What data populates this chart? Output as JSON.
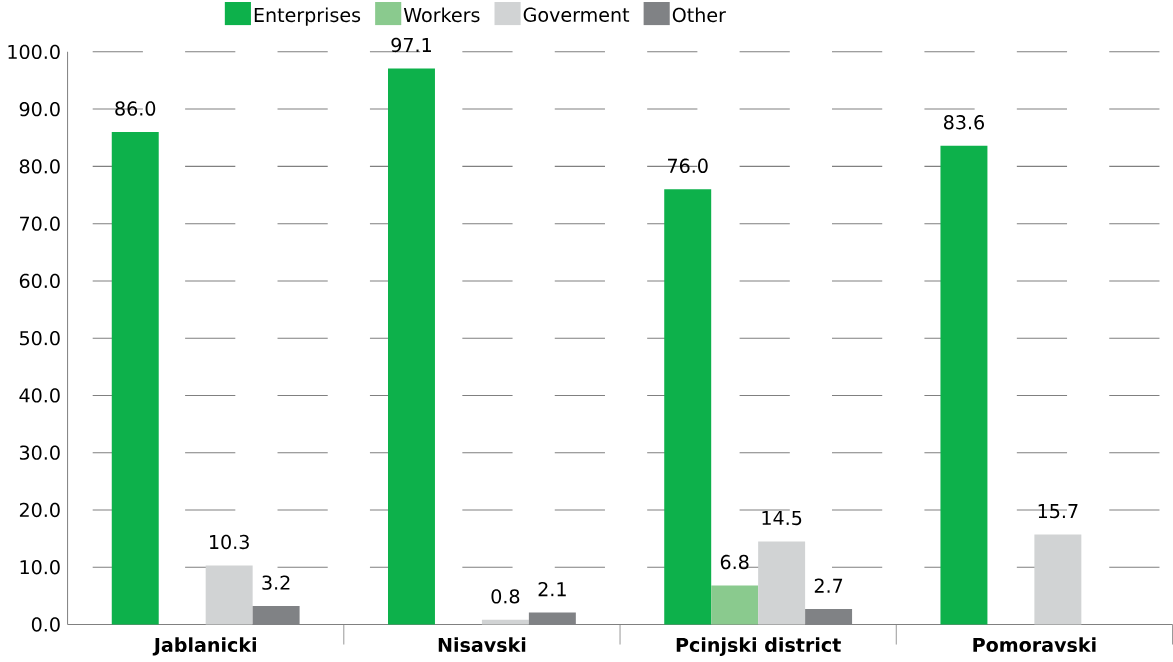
{
  "chart_data": {
    "type": "bar",
    "categories": [
      "Jablanicki",
      "Nisavski",
      "Pcinjski district",
      "Pomoravski"
    ],
    "series": [
      {
        "name": "Enterprises",
        "color": "#0db14b",
        "values": [
          86.0,
          97.1,
          76.0,
          83.6
        ],
        "value_labels": [
          "86.0",
          "97.1",
          "76.0",
          "83.6"
        ]
      },
      {
        "name": "Workers",
        "color": "#8aca8e",
        "values": [
          null,
          null,
          6.8,
          null
        ],
        "value_labels": [
          null,
          null,
          "6.8",
          null
        ]
      },
      {
        "name": "Goverment",
        "color": "#d1d3d4",
        "values": [
          10.3,
          0.8,
          14.5,
          15.7
        ],
        "value_labels": [
          "10.3",
          "0.8",
          "14.5",
          "15.7"
        ]
      },
      {
        "name": "Other",
        "color": "#808285",
        "values": [
          3.2,
          2.1,
          2.7,
          null
        ],
        "value_labels": [
          "3.2",
          "2.1",
          "2.7",
          null
        ]
      }
    ],
    "ylim": [
      0,
      100
    ],
    "yticks": [
      {
        "value": 0,
        "label": "0.0"
      },
      {
        "value": 10,
        "label": "10.0"
      },
      {
        "value": 20,
        "label": "20.0"
      },
      {
        "value": 30,
        "label": "30.0"
      },
      {
        "value": 40,
        "label": "40.0"
      },
      {
        "value": 50,
        "label": "50.0"
      },
      {
        "value": 60,
        "label": "60.0"
      },
      {
        "value": 70,
        "label": "70.0"
      },
      {
        "value": 80,
        "label": "80.0"
      },
      {
        "value": 90,
        "label": "90.0"
      },
      {
        "value": 100,
        "label": "100.0"
      }
    ],
    "grid": "y",
    "legend": "top"
  }
}
